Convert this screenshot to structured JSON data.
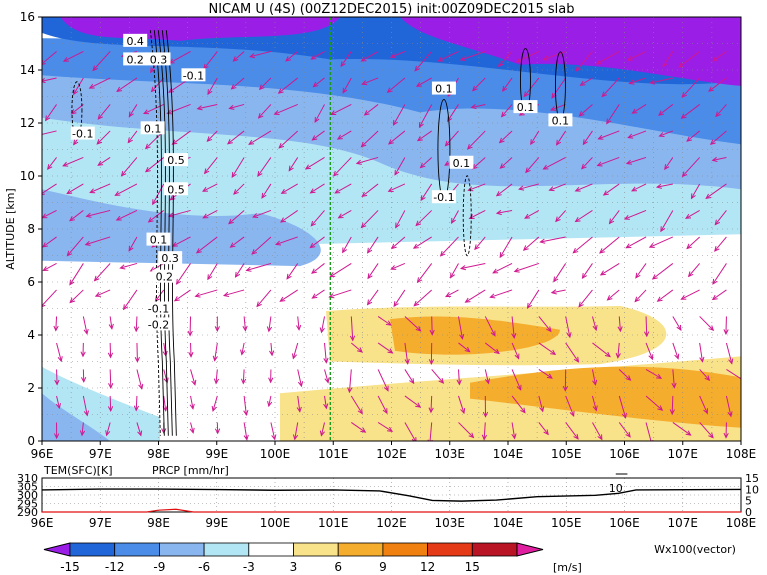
{
  "title": "NICAM U (4S) (00Z12DEC2015) init:00Z09DEC2015 slab",
  "chart_data": {
    "type": "heatmap",
    "title": "NICAM U (4S) (00Z12DEC2015) init:00Z09DEC2015 slab",
    "x_ticks": [
      "96E",
      "97E",
      "98E",
      "99E",
      "100E",
      "101E",
      "102E",
      "103E",
      "104E",
      "105E",
      "106E",
      "107E",
      "108E"
    ],
    "xlim": [
      96,
      108
    ],
    "ylabel": "ALTITUDE [km]",
    "ylim": [
      0,
      16
    ],
    "y_ticks": [
      "0",
      "2",
      "4",
      "6",
      "8",
      "10",
      "12",
      "14",
      "16"
    ],
    "vertical_line_lon": 100.95,
    "contour_labels": [
      {
        "text": "0.4",
        "lon": 97.6,
        "alt": 15.1
      },
      {
        "text": "0.2",
        "lon": 97.6,
        "alt": 14.4
      },
      {
        "text": "0.3",
        "lon": 98.0,
        "alt": 14.4
      },
      {
        "text": "-0.1",
        "lon": 98.6,
        "alt": 13.8
      },
      {
        "text": "-0.1",
        "lon": 96.7,
        "alt": 11.6
      },
      {
        "text": "0.1",
        "lon": 97.9,
        "alt": 11.8
      },
      {
        "text": "0.5",
        "lon": 98.3,
        "alt": 10.6
      },
      {
        "text": "0.5",
        "lon": 98.3,
        "alt": 9.5
      },
      {
        "text": "0.1",
        "lon": 98.0,
        "alt": 7.6
      },
      {
        "text": "0.3",
        "lon": 98.2,
        "alt": 6.9
      },
      {
        "text": "0.2",
        "lon": 98.1,
        "alt": 6.2
      },
      {
        "text": "-0.1",
        "lon": 98.0,
        "alt": 5.0
      },
      {
        "text": "-0.2",
        "lon": 98.0,
        "alt": 4.4
      },
      {
        "text": "0.1",
        "lon": 102.9,
        "alt": 13.3
      },
      {
        "text": "0.1",
        "lon": 103.2,
        "alt": 10.5
      },
      {
        "text": "-0.1",
        "lon": 102.9,
        "alt": 9.2
      },
      {
        "text": "0.1",
        "lon": 104.3,
        "alt": 12.6
      },
      {
        "text": "0.1",
        "lon": 104.9,
        "alt": 12.1
      }
    ],
    "colorbar": {
      "levels": [
        "-15",
        "-12",
        "-9",
        "-6",
        "-3",
        "3",
        "6",
        "9",
        "12",
        "15"
      ],
      "colors": [
        "#9a1ee6",
        "#2166d9",
        "#4a8ce8",
        "#8ab6f0",
        "#b3e6f4",
        "#ffffff",
        "#f8e28a",
        "#f5ad2e",
        "#f08010",
        "#e43a18",
        "#b81424",
        "#e01ea0"
      ],
      "unit": "[m/s]"
    },
    "vector_legend": "Wx100(vector)",
    "bottom_panel": {
      "left_label": "TEM(SFC)[K]",
      "right_label": "PRCP [mm/hr]",
      "left_ticks": [
        "310",
        "305",
        "300",
        "295",
        "290"
      ],
      "right_ticks": [
        "15",
        "10",
        "5",
        "0"
      ],
      "annotation": "10",
      "x_ticks": [
        "96E",
        "97E",
        "98E",
        "99E",
        "100E",
        "101E",
        "102E",
        "103E",
        "104E",
        "105E",
        "106E",
        "107E",
        "108E"
      ],
      "temperature_series": [
        {
          "lon": 96.0,
          "val": 303.0
        },
        {
          "lon": 97.0,
          "val": 303.5
        },
        {
          "lon": 98.0,
          "val": 303.5
        },
        {
          "lon": 99.0,
          "val": 303.2
        },
        {
          "lon": 100.0,
          "val": 302.8
        },
        {
          "lon": 101.0,
          "val": 303.0
        },
        {
          "lon": 101.8,
          "val": 302.4
        },
        {
          "lon": 102.3,
          "val": 299.5
        },
        {
          "lon": 102.7,
          "val": 296.8
        },
        {
          "lon": 103.2,
          "val": 296.4
        },
        {
          "lon": 103.8,
          "val": 297.0
        },
        {
          "lon": 104.5,
          "val": 299.0
        },
        {
          "lon": 105.5,
          "val": 299.8
        },
        {
          "lon": 105.9,
          "val": 301.0
        },
        {
          "lon": 106.2,
          "val": 303.0
        },
        {
          "lon": 108.0,
          "val": 303.3
        }
      ],
      "precip_series": [
        {
          "lon": 96.0,
          "val": 0.0
        },
        {
          "lon": 97.8,
          "val": 0.0
        },
        {
          "lon": 98.0,
          "val": 0.8
        },
        {
          "lon": 98.3,
          "val": 1.2
        },
        {
          "lon": 98.6,
          "val": 0.0
        },
        {
          "lon": 108.0,
          "val": 0.0
        }
      ]
    }
  }
}
